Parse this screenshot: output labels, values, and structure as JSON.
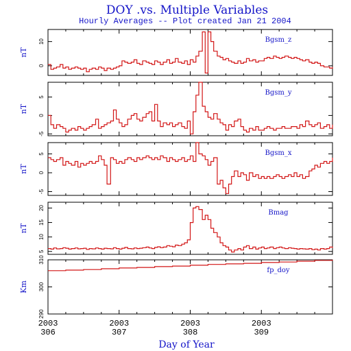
{
  "chart_data": {
    "type": "line",
    "title": "DOY .vs. Multiple Variables",
    "subtitle": "Hourly Averages -- Plot created Jan 21 2004",
    "xlabel": "Day of Year",
    "xlim": [
      306,
      310
    ],
    "x_ticks": [
      {
        "value": 306,
        "year": "2003",
        "day": "306"
      },
      {
        "value": 307,
        "year": "2003",
        "day": "307"
      },
      {
        "value": 308,
        "year": "2003",
        "day": "308"
      },
      {
        "value": 309,
        "year": "2003",
        "day": "309"
      }
    ],
    "line_color": "#d21414",
    "text_color": "#1414c8",
    "panels": [
      {
        "name": "Bgsm_z",
        "ylabel": "nT",
        "ylim": [
          -4,
          15
        ],
        "ticks": [
          {
            "v": 0,
            "label": "0"
          },
          {
            "v": 10,
            "label": "10"
          }
        ],
        "x": [
          306.0,
          306.04,
          306.08,
          306.12,
          306.17,
          306.21,
          306.25,
          306.29,
          306.33,
          306.38,
          306.42,
          306.46,
          306.5,
          306.54,
          306.58,
          306.62,
          306.67,
          306.71,
          306.75,
          306.79,
          306.83,
          306.88,
          306.92,
          306.96,
          307.0,
          307.04,
          307.08,
          307.12,
          307.17,
          307.21,
          307.25,
          307.29,
          307.33,
          307.38,
          307.42,
          307.46,
          307.5,
          307.54,
          307.58,
          307.62,
          307.67,
          307.71,
          307.75,
          307.79,
          307.83,
          307.88,
          307.92,
          307.96,
          308.0,
          308.04,
          308.08,
          308.12,
          308.17,
          308.21,
          308.25,
          308.29,
          308.33,
          308.38,
          308.42,
          308.46,
          308.5,
          308.54,
          308.58,
          308.62,
          308.67,
          308.71,
          308.75,
          308.79,
          308.83,
          308.88,
          308.92,
          308.96,
          309.0,
          309.04,
          309.08,
          309.12,
          309.17,
          309.21,
          309.25,
          309.29,
          309.33,
          309.38,
          309.42,
          309.46,
          309.5,
          309.54,
          309.58,
          309.62,
          309.67,
          309.71,
          309.75,
          309.79,
          309.83,
          309.88,
          309.92,
          309.96,
          310.0
        ],
        "y": [
          0.5,
          -1.5,
          -1.0,
          -0.5,
          0.5,
          -1.0,
          -0.5,
          -1.5,
          -1.0,
          -0.5,
          -1.0,
          -1.5,
          -1.0,
          -2.5,
          -1.5,
          -1.0,
          -1.5,
          -0.5,
          -1.0,
          -2.0,
          -1.0,
          -1.5,
          -1.0,
          -0.5,
          0.0,
          2.0,
          1.5,
          1.0,
          1.5,
          2.5,
          1.0,
          0.5,
          2.0,
          1.5,
          1.0,
          0.5,
          2.0,
          1.5,
          0.5,
          1.5,
          2.5,
          1.0,
          1.5,
          3.0,
          1.5,
          1.0,
          2.0,
          0.5,
          2.5,
          1.5,
          4.0,
          6.0,
          14.0,
          -3.0,
          14.0,
          10.0,
          6.0,
          4.0,
          3.5,
          2.5,
          3.0,
          2.0,
          1.5,
          1.0,
          2.0,
          1.0,
          1.5,
          3.0,
          2.0,
          2.5,
          1.5,
          2.0,
          2.0,
          3.0,
          3.5,
          3.0,
          4.0,
          3.5,
          3.0,
          3.5,
          4.0,
          3.5,
          3.0,
          3.5,
          3.0,
          2.5,
          2.0,
          2.5,
          1.5,
          1.0,
          1.5,
          1.0,
          0.0,
          -0.5,
          -0.5,
          -1.0,
          -0.5
        ]
      },
      {
        "name": "Bgsm_y",
        "ylabel": "nT",
        "ylim": [
          -5.5,
          9
        ],
        "ticks": [
          {
            "v": -5,
            "label": "-5"
          },
          {
            "v": 0,
            "label": "0"
          },
          {
            "v": 5,
            "label": "5"
          }
        ],
        "x": [
          306.0,
          306.04,
          306.08,
          306.12,
          306.17,
          306.21,
          306.25,
          306.29,
          306.33,
          306.38,
          306.42,
          306.46,
          306.5,
          306.54,
          306.58,
          306.62,
          306.67,
          306.71,
          306.75,
          306.79,
          306.83,
          306.88,
          306.92,
          306.96,
          307.0,
          307.04,
          307.08,
          307.12,
          307.17,
          307.21,
          307.25,
          307.29,
          307.33,
          307.38,
          307.42,
          307.46,
          307.5,
          307.54,
          307.58,
          307.62,
          307.67,
          307.71,
          307.75,
          307.79,
          307.83,
          307.88,
          307.92,
          307.96,
          308.0,
          308.04,
          308.08,
          308.12,
          308.17,
          308.21,
          308.25,
          308.29,
          308.33,
          308.38,
          308.42,
          308.46,
          308.5,
          308.54,
          308.58,
          308.62,
          308.67,
          308.71,
          308.75,
          308.79,
          308.83,
          308.88,
          308.92,
          308.96,
          309.0,
          309.04,
          309.08,
          309.12,
          309.17,
          309.21,
          309.25,
          309.29,
          309.33,
          309.38,
          309.42,
          309.46,
          309.5,
          309.54,
          309.58,
          309.62,
          309.67,
          309.71,
          309.75,
          309.79,
          309.83,
          309.88,
          309.92,
          309.96,
          310.0
        ],
        "y": [
          0.0,
          -2.5,
          -3.5,
          -2.5,
          -3.0,
          -3.5,
          -4.5,
          -4.0,
          -3.5,
          -4.0,
          -3.0,
          -3.5,
          -4.0,
          -3.5,
          -3.0,
          -2.5,
          -1.0,
          -3.5,
          -3.0,
          -2.5,
          -2.0,
          -1.5,
          1.5,
          -1.0,
          -2.0,
          -3.0,
          -2.5,
          -1.0,
          0.0,
          0.5,
          -1.0,
          -1.5,
          -0.5,
          0.5,
          1.0,
          -1.5,
          3.0,
          -1.5,
          -3.0,
          -2.0,
          -2.5,
          -2.0,
          -3.0,
          -2.5,
          -2.0,
          -3.0,
          -3.5,
          -1.5,
          -5.0,
          1.0,
          5.5,
          9.0,
          2.5,
          1.0,
          -0.5,
          -1.0,
          0.5,
          -1.0,
          -2.0,
          -2.5,
          -4.0,
          -2.5,
          -3.0,
          -1.5,
          -1.0,
          -3.0,
          -4.0,
          -4.5,
          -3.5,
          -4.0,
          -3.0,
          -4.0,
          -4.0,
          -3.5,
          -3.0,
          -3.5,
          -4.0,
          -3.5,
          -3.5,
          -3.0,
          -3.5,
          -3.5,
          -3.0,
          -3.0,
          -3.5,
          -2.5,
          -3.0,
          -1.5,
          -2.5,
          -3.0,
          -2.5,
          -2.0,
          -3.5,
          -3.0,
          -2.5,
          -3.5,
          -2.5
        ]
      },
      {
        "name": "Bgsm_x",
        "ylabel": "nT",
        "ylim": [
          -6,
          8
        ],
        "ticks": [
          {
            "v": -5,
            "label": "-5"
          },
          {
            "v": 0,
            "label": "0"
          },
          {
            "v": 5,
            "label": "5"
          }
        ],
        "x": [
          306.0,
          306.04,
          306.08,
          306.12,
          306.17,
          306.21,
          306.25,
          306.29,
          306.33,
          306.38,
          306.42,
          306.46,
          306.5,
          306.54,
          306.58,
          306.62,
          306.67,
          306.71,
          306.75,
          306.79,
          306.83,
          306.88,
          306.92,
          306.96,
          307.0,
          307.04,
          307.08,
          307.12,
          307.17,
          307.21,
          307.25,
          307.29,
          307.33,
          307.38,
          307.42,
          307.46,
          307.5,
          307.54,
          307.58,
          307.62,
          307.67,
          307.71,
          307.75,
          307.79,
          307.83,
          307.88,
          307.92,
          307.96,
          308.0,
          308.04,
          308.08,
          308.12,
          308.17,
          308.21,
          308.25,
          308.29,
          308.33,
          308.38,
          308.42,
          308.46,
          308.5,
          308.54,
          308.58,
          308.62,
          308.67,
          308.71,
          308.75,
          308.79,
          308.83,
          308.88,
          308.92,
          308.96,
          309.0,
          309.04,
          309.08,
          309.12,
          309.17,
          309.21,
          309.25,
          309.29,
          309.33,
          309.38,
          309.42,
          309.46,
          309.5,
          309.54,
          309.58,
          309.62,
          309.67,
          309.71,
          309.75,
          309.79,
          309.83,
          309.88,
          309.92,
          309.96,
          310.0
        ],
        "y": [
          4.0,
          3.5,
          3.0,
          3.5,
          4.0,
          2.0,
          3.0,
          2.5,
          2.0,
          3.0,
          1.5,
          2.5,
          2.0,
          2.5,
          3.0,
          2.5,
          3.0,
          4.5,
          3.5,
          2.0,
          -3.0,
          4.0,
          3.5,
          2.5,
          3.0,
          2.5,
          3.5,
          4.0,
          3.5,
          3.0,
          4.0,
          3.5,
          4.0,
          4.5,
          4.0,
          3.5,
          4.0,
          3.5,
          4.5,
          4.0,
          3.0,
          4.0,
          3.5,
          3.0,
          3.5,
          4.0,
          3.0,
          3.5,
          4.5,
          3.0,
          8.0,
          5.0,
          4.5,
          3.5,
          2.0,
          3.0,
          4.0,
          -3.0,
          -2.0,
          -4.0,
          -5.5,
          -3.0,
          -1.0,
          0.5,
          -1.0,
          0.0,
          -0.5,
          -2.0,
          0.0,
          -1.0,
          -0.5,
          -1.5,
          -1.0,
          -1.5,
          -1.0,
          -1.5,
          -1.0,
          -0.5,
          -1.0,
          -1.5,
          -1.0,
          -0.5,
          -1.0,
          0.0,
          -1.0,
          -0.5,
          -1.5,
          -1.0,
          0.5,
          1.0,
          2.0,
          1.5,
          2.5,
          3.0,
          2.5,
          3.0,
          4.0
        ]
      },
      {
        "name": "Bmag",
        "ylabel": "nT",
        "ylim": [
          4,
          22
        ],
        "ticks": [
          {
            "v": 5,
            "label": "5"
          },
          {
            "v": 10,
            "label": "10"
          },
          {
            "v": 15,
            "label": "15"
          },
          {
            "v": 20,
            "label": "20"
          }
        ],
        "x": [
          306.0,
          306.04,
          306.08,
          306.12,
          306.17,
          306.21,
          306.25,
          306.29,
          306.33,
          306.38,
          306.42,
          306.46,
          306.5,
          306.54,
          306.58,
          306.62,
          306.67,
          306.71,
          306.75,
          306.79,
          306.83,
          306.88,
          306.92,
          306.96,
          307.0,
          307.04,
          307.08,
          307.12,
          307.17,
          307.21,
          307.25,
          307.29,
          307.33,
          307.38,
          307.42,
          307.46,
          307.5,
          307.54,
          307.58,
          307.62,
          307.67,
          307.71,
          307.75,
          307.79,
          307.83,
          307.88,
          307.92,
          307.96,
          308.0,
          308.04,
          308.08,
          308.12,
          308.17,
          308.21,
          308.25,
          308.29,
          308.33,
          308.38,
          308.42,
          308.46,
          308.5,
          308.54,
          308.58,
          308.62,
          308.67,
          308.71,
          308.75,
          308.79,
          308.83,
          308.88,
          308.92,
          308.96,
          309.0,
          309.04,
          309.08,
          309.12,
          309.17,
          309.21,
          309.25,
          309.29,
          309.33,
          309.38,
          309.42,
          309.46,
          309.5,
          309.54,
          309.58,
          309.62,
          309.67,
          309.71,
          309.75,
          309.79,
          309.83,
          309.88,
          309.92,
          309.96,
          310.0
        ],
        "y": [
          6.0,
          5.8,
          6.2,
          5.9,
          6.0,
          6.3,
          6.1,
          5.8,
          6.0,
          6.2,
          5.9,
          6.0,
          6.1,
          5.7,
          6.0,
          5.9,
          6.2,
          6.0,
          5.8,
          6.1,
          6.0,
          5.9,
          6.3,
          6.0,
          5.8,
          6.1,
          6.4,
          6.0,
          5.9,
          6.2,
          6.0,
          6.1,
          6.3,
          6.5,
          6.2,
          6.0,
          6.4,
          6.6,
          6.3,
          6.5,
          7.0,
          6.8,
          6.6,
          7.2,
          7.0,
          7.5,
          8.0,
          9.0,
          15.0,
          20.0,
          20.5,
          19.5,
          16.0,
          17.5,
          16.0,
          13.0,
          11.5,
          10.0,
          8.0,
          7.0,
          6.5,
          5.5,
          4.8,
          5.5,
          6.0,
          5.5,
          6.5,
          7.0,
          6.0,
          6.5,
          5.8,
          6.2,
          6.5,
          6.0,
          6.2,
          6.5,
          6.0,
          6.3,
          6.5,
          6.2,
          6.0,
          6.3,
          6.1,
          6.0,
          5.8,
          6.0,
          5.9,
          5.8,
          6.0,
          5.6,
          5.8,
          5.5,
          6.0,
          5.8,
          6.0,
          6.5,
          6.2
        ]
      },
      {
        "name": "fp_doy",
        "ylabel": "Km",
        "ylim": [
          290,
          310
        ],
        "ticks": [
          {
            "v": 290,
            "label": "290"
          },
          {
            "v": 300,
            "label": "300"
          },
          {
            "v": 310,
            "label": "310"
          }
        ],
        "x": [
          306.0,
          306.25,
          306.5,
          306.75,
          307.0,
          307.25,
          307.5,
          307.75,
          308.0,
          308.25,
          308.5,
          308.75,
          309.0,
          309.25,
          309.5,
          309.75,
          310.0
        ],
        "y": [
          306.0,
          306.2,
          306.4,
          306.7,
          307.0,
          307.2,
          307.5,
          307.7,
          308.0,
          308.3,
          308.5,
          308.7,
          309.0,
          309.2,
          309.5,
          309.8,
          310.0
        ]
      }
    ]
  }
}
